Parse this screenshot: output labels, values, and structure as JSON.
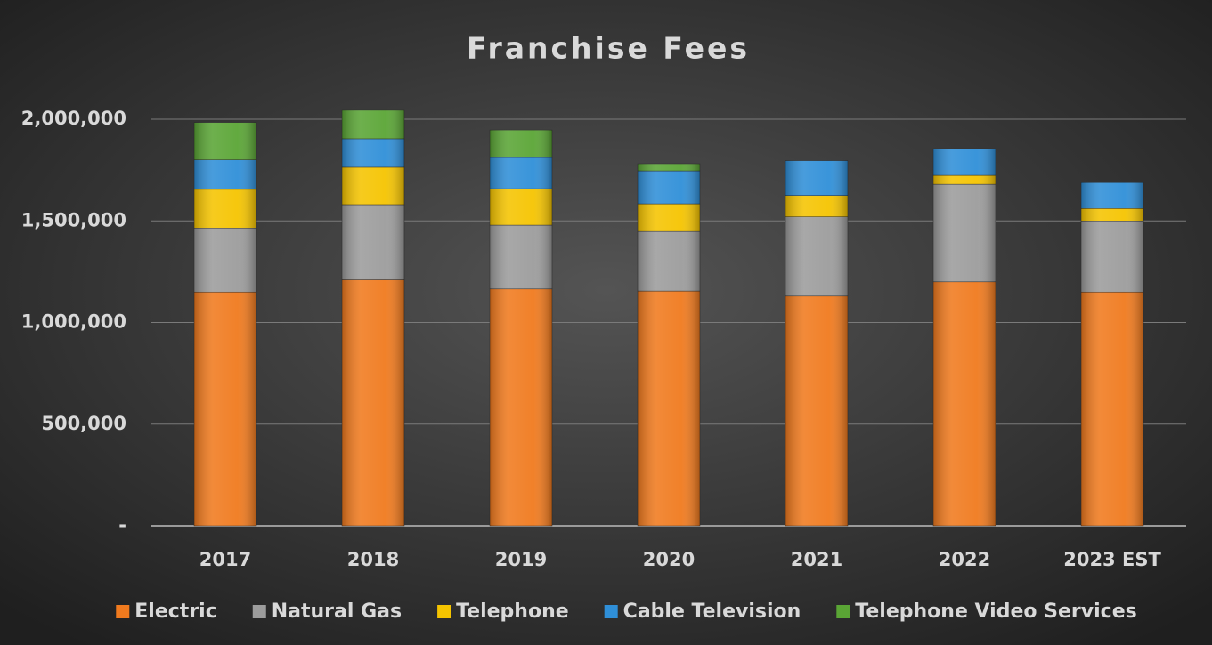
{
  "chart_data": {
    "type": "stacked_bar",
    "title": "Franchise Fees",
    "categories": [
      "2017",
      "2018",
      "2019",
      "2020",
      "2021",
      "2022",
      "2023 EST"
    ],
    "series": [
      {
        "name": "Electric",
        "color": "#f07a1e",
        "values": [
          1150000,
          1210000,
          1165000,
          1155000,
          1130000,
          1200000,
          1150000
        ]
      },
      {
        "name": "Natural Gas",
        "color": "#9c9c9c",
        "values": [
          315000,
          370000,
          314000,
          293000,
          390000,
          480000,
          350000
        ]
      },
      {
        "name": "Telephone",
        "color": "#f5c400",
        "values": [
          190000,
          184000,
          179000,
          136000,
          105000,
          44000,
          61000
        ]
      },
      {
        "name": "Cable Television",
        "color": "#2f8fd8",
        "values": [
          145000,
          140000,
          154000,
          162000,
          171000,
          131000,
          127000
        ]
      },
      {
        "name": "Telephone Video Services",
        "color": "#5aa535",
        "values": [
          184000,
          140000,
          135000,
          35000,
          0,
          0,
          0
        ]
      }
    ],
    "ylim": [
      0,
      2000000
    ],
    "yticks": [
      {
        "value": 0,
        "label": "-"
      },
      {
        "value": 500000,
        "label": "500,000"
      },
      {
        "value": 1000000,
        "label": "1,000,000"
      },
      {
        "value": 1500000,
        "label": "1,500,000"
      },
      {
        "value": 2000000,
        "label": "2,000,000"
      }
    ],
    "grid": true,
    "legend": "bottom"
  }
}
